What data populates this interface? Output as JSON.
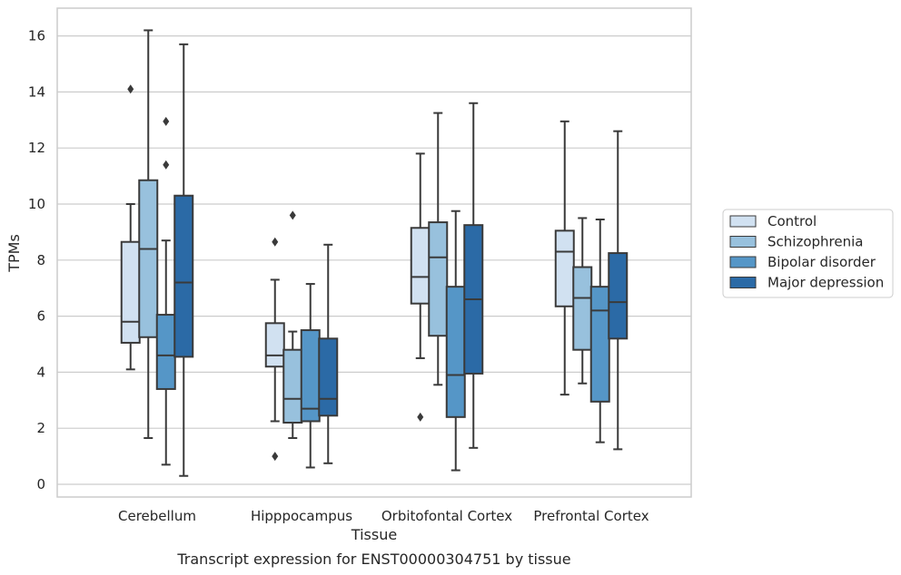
{
  "chart_data": {
    "type": "box",
    "title": "",
    "caption": "Transcript expression for ENST00000304751 by tissue",
    "xlabel": "Tissue",
    "ylabel": "TPMs",
    "ylim": [
      -0.4,
      17
    ],
    "yticks": [
      0,
      2,
      4,
      6,
      8,
      10,
      12,
      14,
      16
    ],
    "grid": "horizontal",
    "legend_position": "right",
    "categories": [
      "Cerebellum",
      "Hipppocampus",
      "Orbitofontal Cortex",
      "Prefrontal Cortex"
    ],
    "series": [
      {
        "name": "Control",
        "color": "#d1e1f1",
        "boxes": [
          {
            "whislo": 4.1,
            "q1": 5.05,
            "med": 5.8,
            "q3": 8.65,
            "whishi": 10.0,
            "fliers": [
              14.1
            ]
          },
          {
            "whislo": 2.25,
            "q1": 4.2,
            "med": 4.6,
            "q3": 5.75,
            "whishi": 7.3,
            "fliers": [
              8.65,
              1.0
            ]
          },
          {
            "whislo": 4.5,
            "q1": 6.45,
            "med": 7.4,
            "q3": 9.15,
            "whishi": 11.8,
            "fliers": [
              2.4
            ]
          },
          {
            "whislo": 3.2,
            "q1": 6.35,
            "med": 8.3,
            "q3": 9.05,
            "whishi": 12.95,
            "fliers": []
          }
        ]
      },
      {
        "name": "Schizophrenia",
        "color": "#98c1dd",
        "boxes": [
          {
            "whislo": 1.65,
            "q1": 5.25,
            "med": 8.4,
            "q3": 10.85,
            "whishi": 16.2,
            "fliers": []
          },
          {
            "whislo": 1.65,
            "q1": 2.2,
            "med": 3.05,
            "q3": 4.8,
            "whishi": 5.45,
            "fliers": [
              9.6
            ]
          },
          {
            "whislo": 3.55,
            "q1": 5.3,
            "med": 8.1,
            "q3": 9.35,
            "whishi": 13.25,
            "fliers": []
          },
          {
            "whislo": 3.6,
            "q1": 4.8,
            "med": 6.65,
            "q3": 7.75,
            "whishi": 9.5,
            "fliers": []
          }
        ]
      },
      {
        "name": "Bipolar disorder",
        "color": "#5596c7",
        "boxes": [
          {
            "whislo": 0.7,
            "q1": 3.4,
            "med": 4.6,
            "q3": 6.05,
            "whishi": 8.7,
            "fliers": [
              11.4,
              12.95
            ]
          },
          {
            "whislo": 0.6,
            "q1": 2.25,
            "med": 2.7,
            "q3": 5.5,
            "whishi": 7.15,
            "fliers": []
          },
          {
            "whislo": 0.5,
            "q1": 2.4,
            "med": 3.9,
            "q3": 7.05,
            "whishi": 9.75,
            "fliers": []
          },
          {
            "whislo": 1.5,
            "q1": 2.95,
            "med": 6.2,
            "q3": 7.05,
            "whishi": 9.45,
            "fliers": []
          }
        ]
      },
      {
        "name": "Major depression",
        "color": "#2b6aa6",
        "boxes": [
          {
            "whislo": 0.3,
            "q1": 4.55,
            "med": 7.2,
            "q3": 10.3,
            "whishi": 15.7,
            "fliers": []
          },
          {
            "whislo": 0.75,
            "q1": 2.45,
            "med": 3.05,
            "q3": 5.2,
            "whishi": 8.55,
            "fliers": []
          },
          {
            "whislo": 1.3,
            "q1": 3.95,
            "med": 6.6,
            "q3": 9.25,
            "whishi": 13.6,
            "fliers": []
          },
          {
            "whislo": 1.25,
            "q1": 5.2,
            "med": 6.5,
            "q3": 8.25,
            "whishi": 12.6,
            "fliers": []
          }
        ]
      }
    ]
  }
}
